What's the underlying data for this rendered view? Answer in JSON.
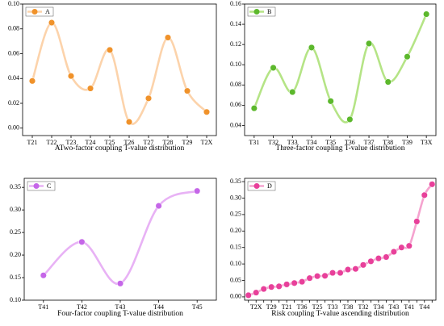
{
  "chart_data": [
    {
      "type": "line",
      "title": "ATwo-factor coupling T-value distribution",
      "legend": "upper left",
      "color": "#f0922a",
      "line_color": "#fcd3ab",
      "series": [
        {
          "name": "A",
          "values": [
            0.038,
            0.085,
            0.042,
            0.032,
            0.063,
            0.005,
            0.024,
            0.073,
            0.03,
            0.013
          ]
        }
      ],
      "categories": [
        "T21",
        "T22",
        "T23",
        "T24",
        "T25",
        "T26",
        "T27",
        "T28",
        "T29",
        "T2X"
      ],
      "ylim": [
        -0.006,
        0.1
      ],
      "yticks": [
        {
          "value": 0,
          "label": "0.00"
        },
        {
          "value": 0.02,
          "label": "0.02"
        },
        {
          "value": 0.04,
          "label": "0.04"
        },
        {
          "value": 0.06,
          "label": "0.06"
        },
        {
          "value": 0.08,
          "label": "0.08"
        },
        {
          "value": 0.1,
          "label": "0.10"
        }
      ]
    },
    {
      "type": "line",
      "title": "Three-factor coupling T-value distribution",
      "legend": "upper left",
      "color": "#5cb82c",
      "line_color": "#b5e486",
      "series": [
        {
          "name": "B",
          "values": [
            0.057,
            0.097,
            0.073,
            0.117,
            0.064,
            0.046,
            0.121,
            0.083,
            0.108,
            0.15
          ]
        }
      ],
      "categories": [
        "T31",
        "T32",
        "T33",
        "T34",
        "T35",
        "T36",
        "T37",
        "T38",
        "T39",
        "T3X"
      ],
      "ylim": [
        0.03,
        0.16
      ],
      "yticks": [
        {
          "value": 0.04,
          "label": "0.04"
        },
        {
          "value": 0.06,
          "label": "0.06"
        },
        {
          "value": 0.08,
          "label": "0.08"
        },
        {
          "value": 0.1,
          "label": "0.10"
        },
        {
          "value": 0.12,
          "label": "0.12"
        },
        {
          "value": 0.14,
          "label": "0.14"
        },
        {
          "value": 0.16,
          "label": "0.16"
        }
      ]
    },
    {
      "type": "line",
      "title": "Four-factor coupling T-value distribution",
      "legend": "upper left",
      "color": "#c566e8",
      "line_color": "#e8b2f5",
      "series": [
        {
          "name": "C",
          "values": [
            0.155,
            0.229,
            0.137,
            0.309,
            0.342
          ]
        }
      ],
      "categories": [
        "T41",
        "T42",
        "T43",
        "T44",
        "T45"
      ],
      "ylim": [
        0.1,
        0.37
      ],
      "yticks": [
        {
          "value": 0.1,
          "label": "0.10"
        },
        {
          "value": 0.15,
          "label": "0.15"
        },
        {
          "value": 0.2,
          "label": "0.20"
        },
        {
          "value": 0.25,
          "label": "0.25"
        },
        {
          "value": 0.3,
          "label": "0.30"
        },
        {
          "value": 0.35,
          "label": "0.35"
        }
      ]
    },
    {
      "type": "line",
      "title": "Risk coupling T-value ascending distribution",
      "legend": "upper left",
      "color": "#e8409a",
      "line_color": "#f5a3cf",
      "series": [
        {
          "name": "D",
          "values": [
            0.005,
            0.013,
            0.024,
            0.03,
            0.032,
            0.038,
            0.042,
            0.046,
            0.057,
            0.063,
            0.064,
            0.073,
            0.073,
            0.083,
            0.085,
            0.097,
            0.108,
            0.117,
            0.121,
            0.137,
            0.15,
            0.155,
            0.229,
            0.309,
            0.342
          ]
        }
      ],
      "categories": [
        null,
        "T2X",
        null,
        "T29",
        null,
        "T21",
        null,
        "T36",
        null,
        "T25",
        null,
        "T33",
        null,
        "T38",
        null,
        "T32",
        null,
        "T34",
        null,
        "T43",
        null,
        "T41",
        null,
        "T44",
        null
      ],
      "ylim": [
        -0.01,
        0.36
      ],
      "yticks": [
        {
          "value": 0,
          "label": "0.00"
        },
        {
          "value": 0.05,
          "label": "0.05"
        },
        {
          "value": 0.1,
          "label": "0.10"
        },
        {
          "value": 0.15,
          "label": "0.15"
        },
        {
          "value": 0.2,
          "label": "0.20"
        },
        {
          "value": 0.25,
          "label": "0.25"
        },
        {
          "value": 0.3,
          "label": "0.30"
        },
        {
          "value": 0.35,
          "label": "0.35"
        }
      ]
    }
  ]
}
